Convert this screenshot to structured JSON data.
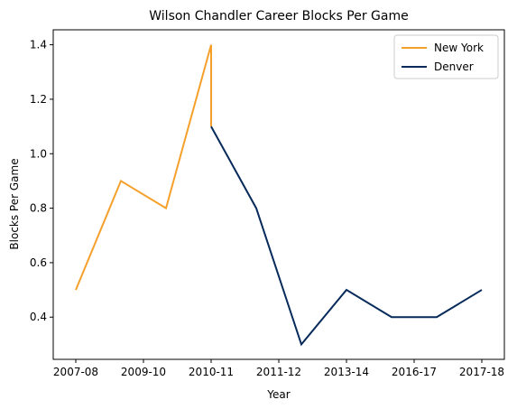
{
  "chart_data": {
    "type": "line",
    "title": "Wilson Chandler Career Blocks Per Game",
    "xlabel": "Year",
    "ylabel": "Blocks Per Game",
    "x_tick_labels": [
      "2007-08",
      "2009-10",
      "2010-11",
      "2011-12",
      "2013-14",
      "2016-17",
      "2017-18"
    ],
    "yticks": [
      0.4,
      0.6,
      0.8,
      1.0,
      1.2,
      1.4
    ],
    "ylim": [
      0.245,
      1.455
    ],
    "xlim": [
      -0.5,
      9.5
    ],
    "grid": false,
    "legend_position": "top-right",
    "series": [
      {
        "name": "New York",
        "color": "#f5a02a",
        "x": [
          0,
          1,
          2,
          3,
          3
        ],
        "y": [
          0.5,
          0.9,
          0.8,
          1.4,
          1.1
        ]
      },
      {
        "name": "Denver",
        "color": "#062a5a",
        "x": [
          3,
          4,
          5,
          6,
          7,
          8,
          9
        ],
        "y": [
          1.1,
          0.8,
          0.3,
          0.5,
          0.4,
          0.4,
          0.5
        ]
      }
    ]
  }
}
